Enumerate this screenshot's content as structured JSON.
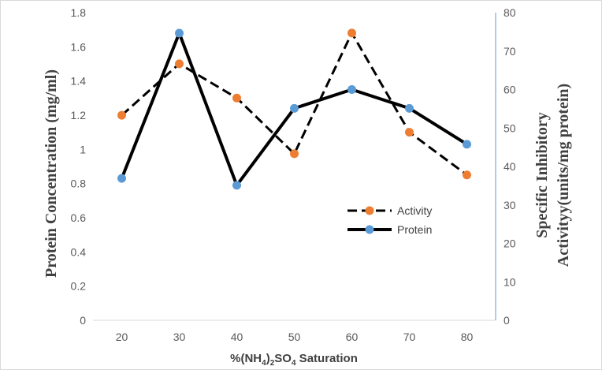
{
  "chart_data": {
    "type": "line",
    "categories": [
      "20",
      "30",
      "40",
      "50",
      "60",
      "70",
      "80"
    ],
    "x": [
      20,
      30,
      40,
      50,
      60,
      70,
      80
    ],
    "series": [
      {
        "name": "Activity",
        "axis": "right",
        "style": "dashed",
        "line_color": "#000000",
        "marker_color": "#ED7D31",
        "values": [
          53.3,
          66.7,
          57.8,
          43.3,
          74.7,
          48.9,
          37.8
        ]
      },
      {
        "name": "Protein",
        "axis": "left",
        "style": "solid",
        "line_color": "#000000",
        "marker_color": "#5B9BD5",
        "values": [
          0.83,
          1.68,
          0.79,
          1.24,
          1.35,
          1.24,
          1.03
        ]
      }
    ],
    "xlabel": "%(NH4)2SO4 Saturation",
    "xlabel_parts": [
      "%(NH",
      "4",
      ")",
      "2",
      "SO",
      "4",
      " Saturation"
    ],
    "ylabel_left": "Protein  Concentration (mg/ml)",
    "ylabel_right_lines": [
      "Specific Inhibitory",
      "Activityy(units/mg protein)"
    ],
    "ylim_left": [
      0,
      1.8
    ],
    "yticks_left": [
      "0",
      "0.2",
      "0.4",
      "0.6",
      "0.8",
      "1",
      "1.2",
      "1.4",
      "1.6",
      "1.8"
    ],
    "ylim_right": [
      0,
      80
    ],
    "yticks_right": [
      "0",
      "10",
      "20",
      "30",
      "40",
      "50",
      "60",
      "70",
      "80"
    ],
    "grid": false,
    "legend_position": "center-right"
  }
}
